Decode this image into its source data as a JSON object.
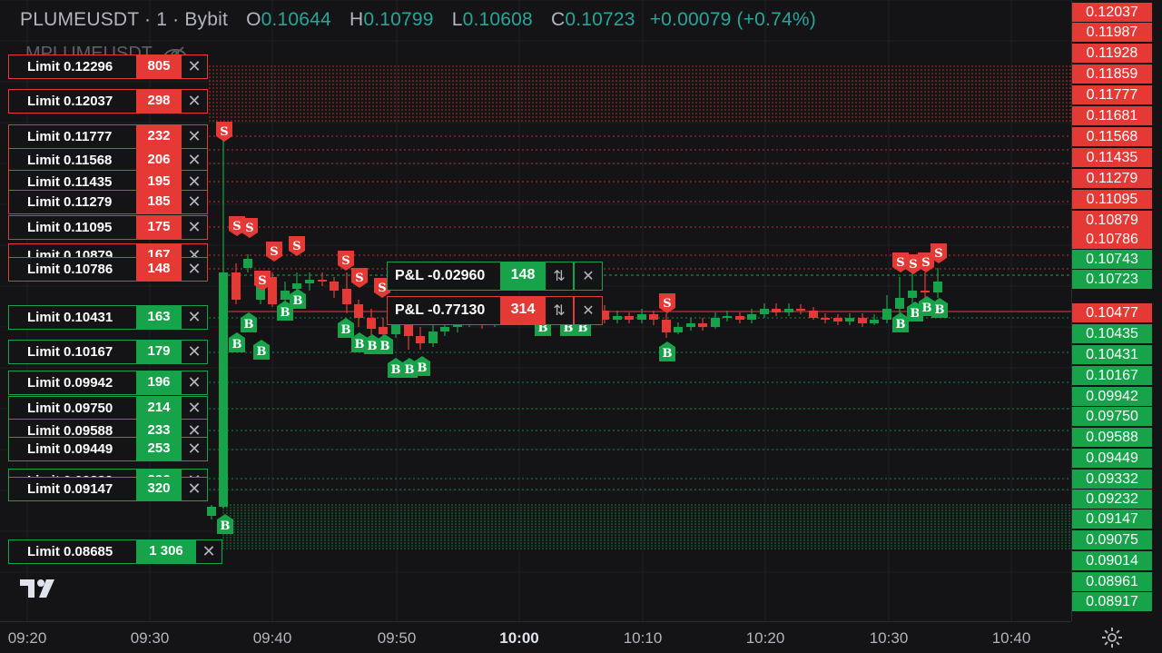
{
  "header": {
    "symbol": "PLUMEUSDT · 1 · Bybit",
    "o_key": "O",
    "o_val": "0.10644",
    "h_key": "H",
    "h_val": "0.10799",
    "l_key": "L",
    "l_val": "0.10608",
    "c_key": "C",
    "c_val": "0.10723",
    "change": "+0.00079 (+0.74%)",
    "sub_symbol": "MPLUMEUSDT"
  },
  "colors": {
    "up": "#16a34a",
    "down": "#e53935",
    "background": "#141416"
  },
  "price_axis": [
    {
      "label": "0.12037",
      "color": "red"
    },
    {
      "label": "0.11987",
      "color": "red"
    },
    {
      "label": "0.11928",
      "color": "red"
    },
    {
      "label": "0.11859",
      "color": "red"
    },
    {
      "label": "0.11777",
      "color": "red"
    },
    {
      "label": "0.11681",
      "color": "red"
    },
    {
      "label": "0.11568",
      "color": "red"
    },
    {
      "label": "0.11435",
      "color": "red"
    },
    {
      "label": "0.11279",
      "color": "red"
    },
    {
      "label": "0.11095",
      "color": "red"
    },
    {
      "label": "0.10879",
      "color": "red"
    },
    {
      "label": "0.10786",
      "color": "red"
    },
    {
      "label": "0.10743",
      "color": "green"
    },
    {
      "label": "0.10723",
      "color": "green"
    },
    {
      "label": "0.10477",
      "color": "red"
    },
    {
      "label": "0.10435",
      "color": "green"
    },
    {
      "label": "0.10431",
      "color": "green"
    },
    {
      "label": "0.10167",
      "color": "green"
    },
    {
      "label": "0.09942",
      "color": "green"
    },
    {
      "label": "0.09750",
      "color": "green"
    },
    {
      "label": "0.09588",
      "color": "green"
    },
    {
      "label": "0.09449",
      "color": "green"
    },
    {
      "label": "0.09332",
      "color": "green"
    },
    {
      "label": "0.09232",
      "color": "green"
    },
    {
      "label": "0.09147",
      "color": "green"
    },
    {
      "label": "0.09075",
      "color": "green"
    },
    {
      "label": "0.09014",
      "color": "green"
    },
    {
      "label": "0.08961",
      "color": "green"
    },
    {
      "label": "0.08917",
      "color": "green"
    }
  ],
  "time_axis": [
    "09:20",
    "09:30",
    "09:40",
    "09:50",
    "10:00",
    "10:10",
    "10:20",
    "10:30",
    "10:40"
  ],
  "sell_orders": [
    {
      "label": "Limit 0.12296",
      "qty": "805"
    },
    {
      "label": "Limit 0.12037",
      "qty": "298"
    },
    {
      "label": "Limit 0.11777",
      "qty": "232"
    },
    {
      "label": "Limit 0.11568",
      "qty": "206"
    },
    {
      "label": "Limit 0.11435",
      "qty": "195"
    },
    {
      "label": "Limit 0.11279",
      "qty": "185"
    },
    {
      "label": "Limit 0.11095",
      "qty": "175"
    },
    {
      "label": "Limit 0.10879",
      "qty": "167"
    },
    {
      "label": "Limit 0.10786",
      "qty": "148"
    }
  ],
  "buy_orders": [
    {
      "label": "Limit 0.10431",
      "qty": "163"
    },
    {
      "label": "Limit 0.10167",
      "qty": "179"
    },
    {
      "label": "Limit 0.09942",
      "qty": "196"
    },
    {
      "label": "Limit 0.09750",
      "qty": "214"
    },
    {
      "label": "Limit 0.09588",
      "qty": "233"
    },
    {
      "label": "Limit 0.09449",
      "qty": "253"
    },
    {
      "label": "Limit 0.09332",
      "qty": "296"
    },
    {
      "label": "Limit 0.09147",
      "qty": "320"
    },
    {
      "label": "Limit 0.08685",
      "qty": "1 306"
    }
  ],
  "positions": [
    {
      "label": "P&L -0.02960",
      "qty": "148"
    },
    {
      "label": "P&L -0.77130",
      "qty": "314"
    }
  ],
  "icons": {
    "close": "close-icon",
    "reverse": "reverse-arrows-icon",
    "settings": "gear-icon",
    "visibility": "eye-off-icon",
    "logo": "tradingview-logo"
  }
}
